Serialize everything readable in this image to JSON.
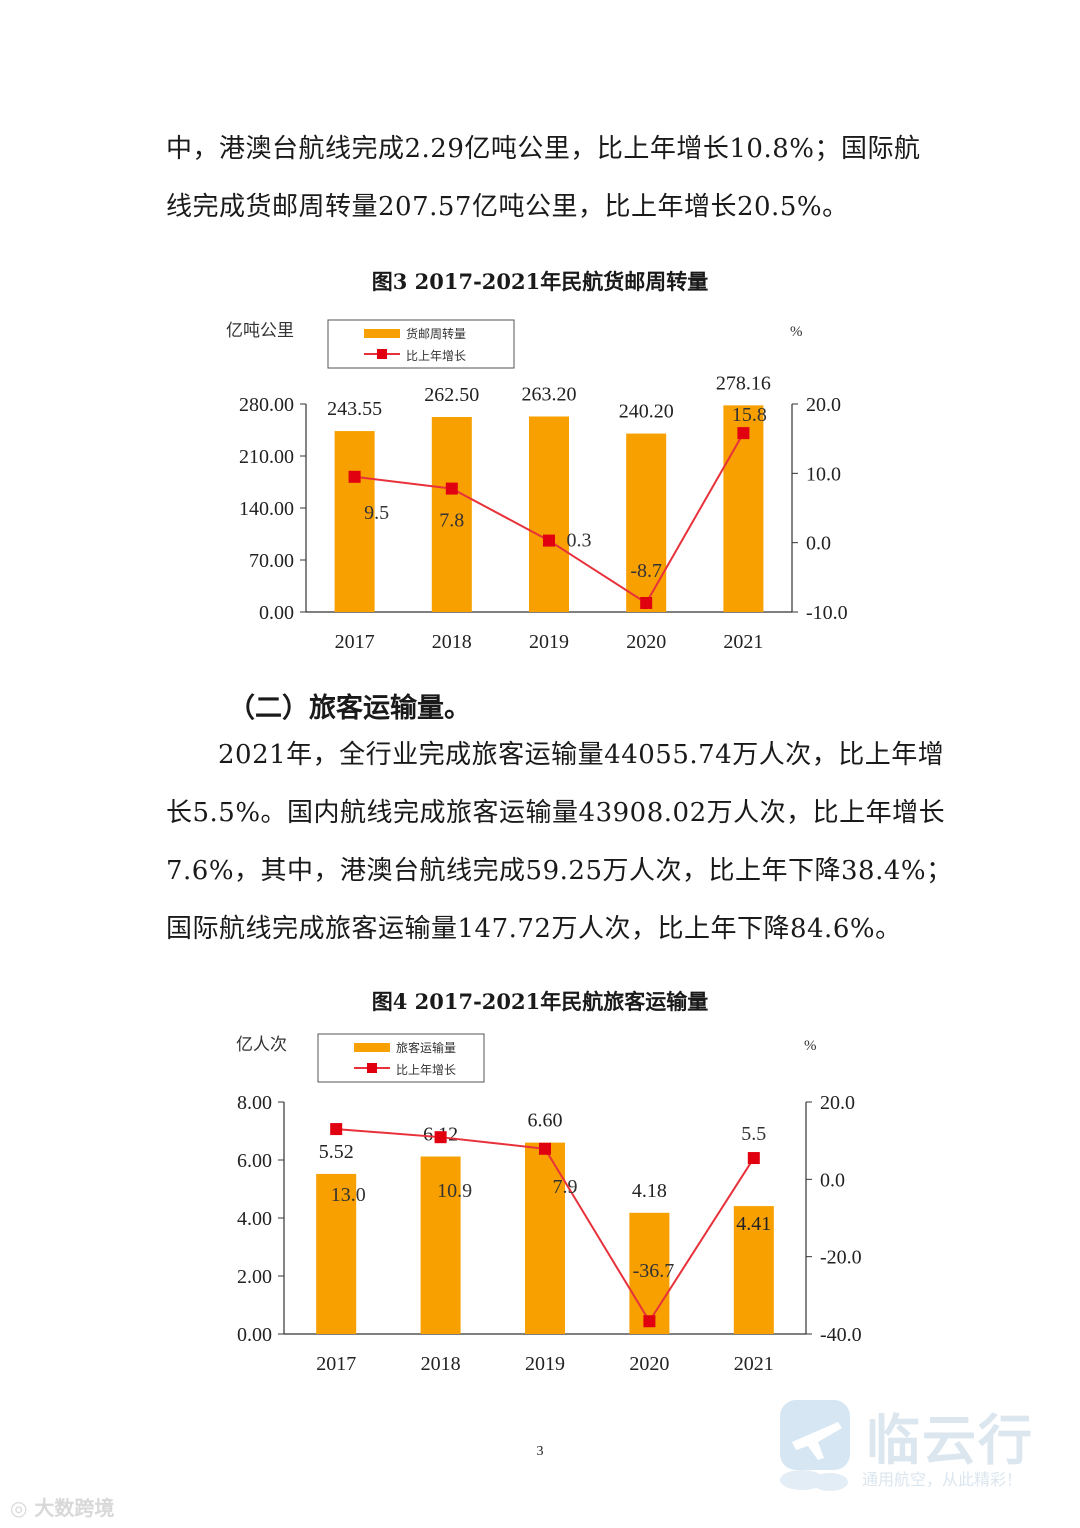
{
  "paragraph1": {
    "lines": [
      "中，港澳台航线完成2.29亿吨公里，比上年增长10.8%；国际航",
      "线完成货邮周转量207.57亿吨公里，比上年增长20.5%。"
    ]
  },
  "figure3_title": "图3 2017-2021年民航货邮周转量",
  "section_heading": "（二）旅客运输量。",
  "paragraph2": {
    "lines": [
      "2021年，全行业完成旅客运输量44055.74万人次，比上年增",
      "长5.5%。国内航线完成旅客运输量43908.02万人次，比上年增长",
      "7.6%，其中，港澳台航线完成59.25万人次，比上年下降38.4%；",
      "国际航线完成旅客运输量147.72万人次，比上年下降84.6%。"
    ]
  },
  "figure4_title": "图4 2017-2021年民航旅客运输量",
  "page_number": "3",
  "watermark_left": "大数跨境",
  "watermark_right": {
    "name": "临云行",
    "slogan": "通用航空，从此精彩！"
  },
  "colors": {
    "bar": "#F7A000",
    "line": "#E8313A",
    "marker": "#E00010"
  },
  "chart_data": [
    {
      "type": "bar",
      "categories": [
        "2017",
        "2018",
        "2019",
        "2020",
        "2021"
      ],
      "left_axis_unit": "亿吨公里",
      "right_axis_unit": "%",
      "ylim_left": [
        0,
        280
      ],
      "ylim_right": [
        -10,
        20
      ],
      "left_ticks": [
        "0.00",
        "70.00",
        "140.00",
        "210.00",
        "280.00"
      ],
      "right_ticks": [
        "-10.0",
        "0.0",
        "10.0",
        "20.0"
      ],
      "legend": [
        "货邮周转量",
        "比上年增长"
      ],
      "series": [
        {
          "name": "货邮周转量",
          "kind": "bar",
          "axis": "left",
          "values": [
            243.55,
            262.5,
            263.2,
            240.2,
            278.16
          ],
          "labels": [
            "243.55",
            "262.50",
            "263.20",
            "240.20",
            "278.16"
          ]
        },
        {
          "name": "比上年增长",
          "kind": "line",
          "axis": "right",
          "values": [
            9.5,
            7.8,
            0.3,
            -8.7,
            15.8
          ],
          "labels": [
            "9.5",
            "7.8",
            "0.3",
            "-8.7",
            "15.8"
          ]
        }
      ]
    },
    {
      "type": "bar",
      "categories": [
        "2017",
        "2018",
        "2019",
        "2020",
        "2021"
      ],
      "left_axis_unit": "亿人次",
      "right_axis_unit": "%",
      "ylim_left": [
        0,
        8
      ],
      "ylim_right": [
        -40,
        20
      ],
      "left_ticks": [
        "0.00",
        "2.00",
        "4.00",
        "6.00",
        "8.00"
      ],
      "right_ticks": [
        "-40.0",
        "-20.0",
        "0.0",
        "20.0"
      ],
      "legend": [
        "旅客运输量",
        "比上年增长"
      ],
      "series": [
        {
          "name": "旅客运输量",
          "kind": "bar",
          "axis": "left",
          "values": [
            5.52,
            6.12,
            6.6,
            4.18,
            4.41
          ],
          "labels": [
            "5.52",
            "6.12",
            "6.60",
            "4.18",
            "4.41"
          ]
        },
        {
          "name": "比上年增长",
          "kind": "line",
          "axis": "right",
          "values": [
            13.0,
            10.9,
            7.9,
            -36.7,
            5.5
          ],
          "labels": [
            "13.0",
            "10.9",
            "7.9",
            "-36.7",
            "5.5"
          ]
        }
      ]
    }
  ]
}
